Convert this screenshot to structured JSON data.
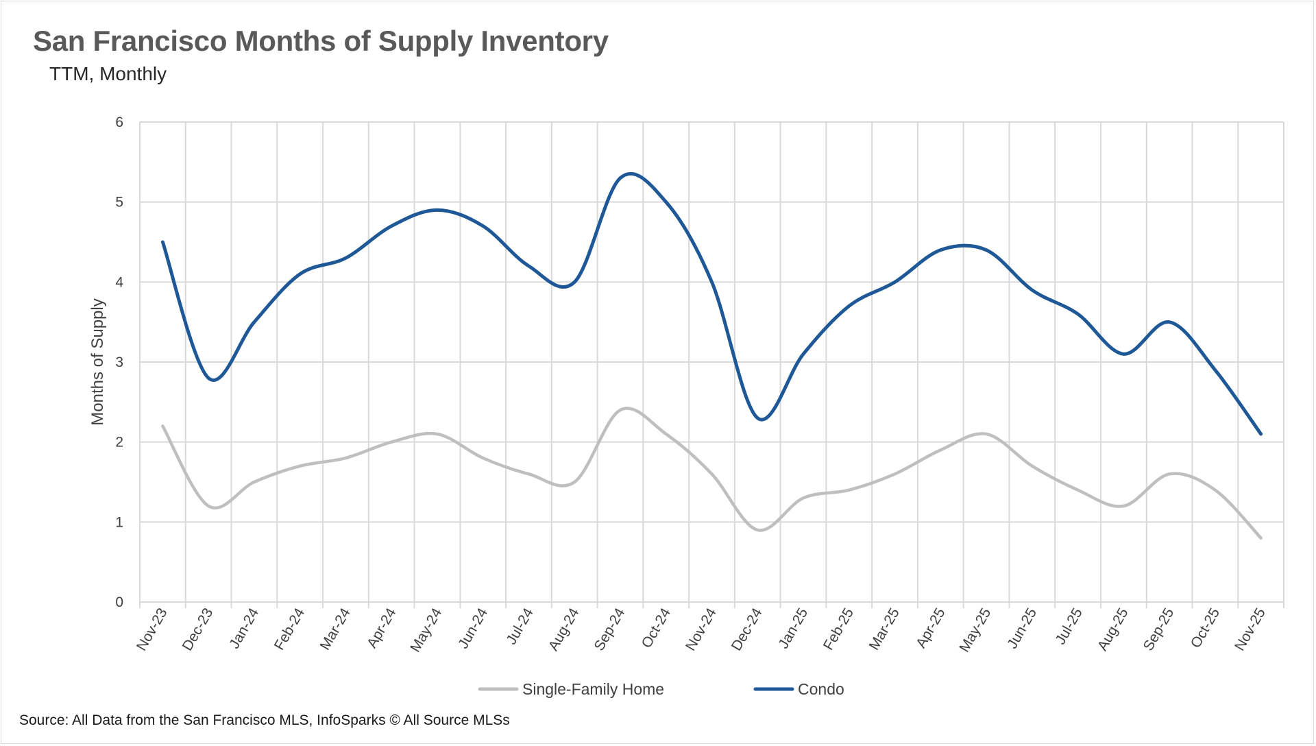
{
  "title": "San Francisco Months of Supply Inventory",
  "subtitle": "TTM, Monthly",
  "source": "Source: All Data from the San Francisco MLS, InfoSparks © All Source MLSs",
  "chart_data": {
    "type": "line",
    "ylabel": "Months of Supply",
    "ylim": [
      0,
      6
    ],
    "yticks": [
      0,
      1,
      2,
      3,
      4,
      5,
      6
    ],
    "grid": true,
    "legend": "bottom",
    "categories": [
      "Nov-23",
      "Dec-23",
      "Jan-24",
      "Feb-24",
      "Mar-24",
      "Apr-24",
      "May-24",
      "Jun-24",
      "Jul-24",
      "Aug-24",
      "Sep-24",
      "Oct-24",
      "Nov-24",
      "Dec-24",
      "Jan-25",
      "Feb-25",
      "Mar-25",
      "Apr-25",
      "May-25",
      "Jun-25",
      "Jul-25",
      "Aug-25",
      "Sep-25",
      "Oct-25",
      "Nov-25"
    ],
    "series": [
      {
        "name": "Single-Family Home",
        "color": "#bfbfbf",
        "values": [
          2.2,
          1.2,
          1.5,
          1.7,
          1.8,
          2.0,
          2.1,
          1.8,
          1.6,
          1.5,
          2.4,
          2.1,
          1.6,
          0.9,
          1.3,
          1.4,
          1.6,
          1.9,
          2.1,
          1.7,
          1.4,
          1.2,
          1.6,
          1.4,
          0.8
        ]
      },
      {
        "name": "Condo",
        "color": "#1f5897",
        "values": [
          4.5,
          2.8,
          3.5,
          4.1,
          4.3,
          4.7,
          4.9,
          4.7,
          4.2,
          4.0,
          5.3,
          5.0,
          4.0,
          2.3,
          3.1,
          3.7,
          4.0,
          4.4,
          4.4,
          3.9,
          3.6,
          3.1,
          3.5,
          2.9,
          2.1
        ]
      }
    ]
  }
}
